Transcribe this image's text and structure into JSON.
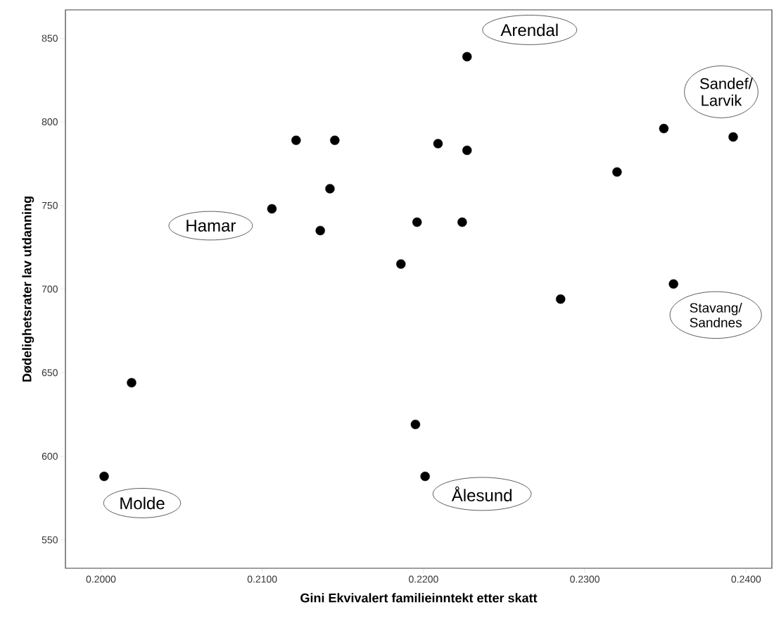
{
  "chart_data": {
    "type": "scatter",
    "xlabel": "Gini Ekvivalert familieinntekt etter skatt",
    "ylabel": "Dødelighetsrater lav utdanning",
    "x": [
      0.2121,
      0.2145,
      0.2142,
      0.2106,
      0.2136,
      0.2196,
      0.2186,
      0.2227,
      0.2349,
      0.2392,
      0.2209,
      0.2227,
      0.232,
      0.2224,
      0.2355,
      0.2285,
      0.2019,
      0.2195,
      0.2002,
      0.2201
    ],
    "values": [
      789,
      789,
      760,
      748,
      735,
      740,
      715,
      839,
      796,
      791,
      787,
      783,
      770,
      740,
      703,
      694,
      644,
      619,
      588,
      588
    ],
    "color": "#000000",
    "marker": "circle",
    "xlim": [
      0.1978,
      0.2416
    ],
    "ylim": [
      533,
      867
    ],
    "xticks": [
      {
        "value": 0.2,
        "label": "0.2000"
      },
      {
        "value": 0.21,
        "label": "0.2100"
      },
      {
        "value": 0.22,
        "label": "0.2200"
      },
      {
        "value": 0.23,
        "label": "0.2300"
      },
      {
        "value": 0.24,
        "label": "0.2400"
      }
    ],
    "yticks": [
      550,
      600,
      650,
      700,
      750,
      800,
      850
    ],
    "annotations": [
      {
        "text": "Arendal",
        "x": 0.2227,
        "y": 839
      },
      {
        "text": "Sandef/ Larvik",
        "x": 0.2392,
        "y": 791
      },
      {
        "text": "Hamar",
        "x": 0.2106,
        "y": 748
      },
      {
        "text": "Stavang/ Sandnes",
        "x": 0.2355,
        "y": 703
      },
      {
        "text": "Molde",
        "x": 0.2002,
        "y": 588
      },
      {
        "text": "Ålesund",
        "x": 0.2201,
        "y": 588
      }
    ]
  }
}
